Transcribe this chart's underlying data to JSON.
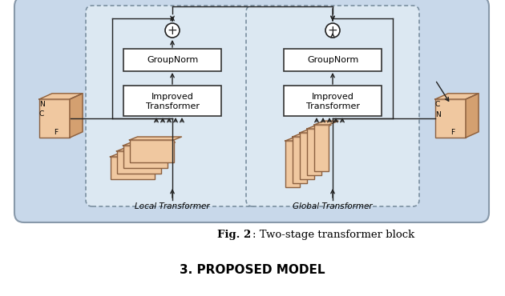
{
  "fig_width": 6.3,
  "fig_height": 3.7,
  "dpi": 100,
  "bg_color": "#ffffff",
  "outer_box_color": "#c8d8ea",
  "inner_box_color": "#dce8f2",
  "dashed_box_edge": "#7a8fa0",
  "outer_box_edge": "#8899aa",
  "block_fill": "#f0c8a0",
  "block_fill_dark": "#d4a070",
  "block_edge": "#8B6040",
  "white_box_fill": "#ffffff",
  "white_box_edge": "#333333",
  "arrow_color": "#222222",
  "caption_bold": "Fig. 2",
  "caption_normal": ": Two-stage transformer block",
  "section_title": "3. PROPOSED MODEL",
  "local_label": "Local Transformer",
  "global_label": "Global Transformer",
  "groupnorm_label": "GroupNorm",
  "improved_label1": "Improved",
  "improved_label2": "Transformer"
}
